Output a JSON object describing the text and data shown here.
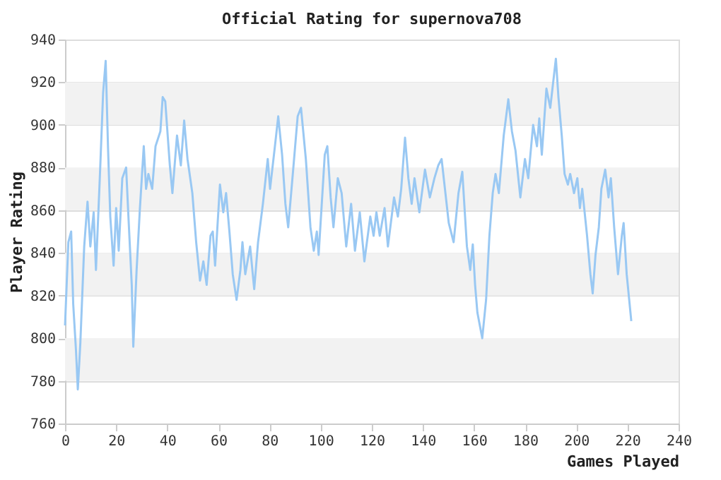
{
  "chart_data": {
    "type": "line",
    "title": "Official Rating for supernova708",
    "xlabel": "Games Played",
    "ylabel": "Player Rating",
    "xlim": [
      0,
      240
    ],
    "xticks": [
      0,
      20,
      40,
      60,
      80,
      100,
      120,
      140,
      160,
      180,
      200,
      220,
      240
    ],
    "ylim": [
      760,
      940
    ],
    "yticks": [
      760,
      780,
      800,
      820,
      840,
      860,
      880,
      900,
      920,
      940
    ],
    "grid": "y",
    "marker": "none",
    "line_style": "solid",
    "bands": [
      {
        "axis": "y",
        "from": 780,
        "to": 800,
        "color": "#f2f2f2"
      },
      {
        "axis": "y",
        "from": 820,
        "to": 840,
        "color": "#f2f2f2"
      },
      {
        "axis": "y",
        "from": 860,
        "to": 880,
        "color": "#f2f2f2"
      },
      {
        "axis": "y",
        "from": 900,
        "to": 920,
        "color": "#f2f2f2"
      }
    ],
    "series": [
      {
        "color": "#99c8f3",
        "x": [
          0,
          1.3,
          2.4,
          3.2,
          4.3,
          5,
          6,
          7.5,
          8.8,
          9.9,
          11.2,
          12.1,
          13.6,
          14.9,
          15.9,
          16.8,
          17.7,
          19,
          20,
          21,
          22.4,
          23.9,
          24.8,
          26.1,
          26.7,
          28,
          29.3,
          30.8,
          31.7,
          32.6,
          34.1,
          35.4,
          37.3,
          38.2,
          39.2,
          41,
          42,
          43.8,
          45.3,
          46.6,
          47.9,
          49.8,
          51.3,
          52.8,
          54.1,
          55.4,
          56.9,
          57.8,
          58.7,
          60.6,
          61.9,
          63,
          64.3,
          65.6,
          67.1,
          68.6,
          69.4,
          70.5,
          72.4,
          74,
          75.5,
          77.4,
          79.3,
          80.2,
          82.1,
          83.4,
          84.9,
          86.2,
          87.3,
          89.1,
          91,
          92.3,
          94.2,
          96,
          97.3,
          98.5,
          99.2,
          101.6,
          102.6,
          103.9,
          105,
          106.7,
          108.2,
          110,
          111.9,
          113.4,
          115.3,
          117.1,
          119.4,
          120.7,
          121.8,
          123.1,
          125,
          126.3,
          128.7,
          130.2,
          131.5,
          133,
          134.3,
          135.6,
          136.7,
          138.6,
          140.8,
          142.7,
          144.5,
          146,
          147.3,
          150.1,
          152,
          153.9,
          155.4,
          157.2,
          158.5,
          159.5,
          160.4,
          161.3,
          163.2,
          164.7,
          166,
          167.3,
          168.4,
          169.7,
          171.6,
          173.4,
          174.8,
          176.2,
          178.1,
          179.9,
          181.2,
          183.1,
          184.6,
          185.5,
          186.5,
          188.3,
          189.8,
          192,
          193,
          194.3,
          195.4,
          196.7,
          197.6,
          199.1,
          200.4,
          201.4,
          202.3,
          204.2,
          205.5,
          206.4,
          207.5,
          208.8,
          209.8,
          211.3,
          212.6,
          213.5,
          214.8,
          216.3,
          217.8,
          218.5,
          219.7,
          221.5
        ],
        "values": [
          806,
          845,
          850,
          816,
          794,
          776,
          798,
          843,
          864,
          843,
          859,
          832,
          875,
          915,
          930,
          890,
          857,
          834,
          861,
          841,
          875,
          880,
          857,
          825,
          796,
          832,
          861,
          890,
          870,
          877,
          870,
          890,
          897,
          913,
          911,
          881,
          868,
          895,
          881,
          902,
          884,
          868,
          845,
          827,
          836,
          825,
          848,
          850,
          834,
          872,
          859,
          868,
          850,
          830,
          818,
          832,
          845,
          830,
          843,
          823,
          845,
          863,
          884,
          870,
          890,
          904,
          886,
          863,
          852,
          877,
          904,
          908,
          884,
          852,
          841,
          850,
          839,
          886,
          890,
          866,
          852,
          875,
          868,
          843,
          863,
          841,
          859,
          836,
          857,
          848,
          859,
          848,
          861,
          843,
          866,
          857,
          870,
          894,
          875,
          863,
          875,
          859,
          879,
          866,
          875,
          881,
          884,
          854,
          845,
          868,
          878,
          843,
          832,
          844,
          825,
          812,
          800,
          818,
          848,
          868,
          877,
          868,
          895,
          912,
          897,
          888,
          866,
          884,
          875,
          900,
          890,
          903,
          886,
          917,
          908,
          931,
          913,
          895,
          877,
          872,
          877,
          868,
          875,
          861,
          870,
          848,
          830,
          821,
          839,
          852,
          870,
          879,
          866,
          875,
          852,
          830,
          848,
          854,
          830,
          808
        ]
      }
    ]
  }
}
